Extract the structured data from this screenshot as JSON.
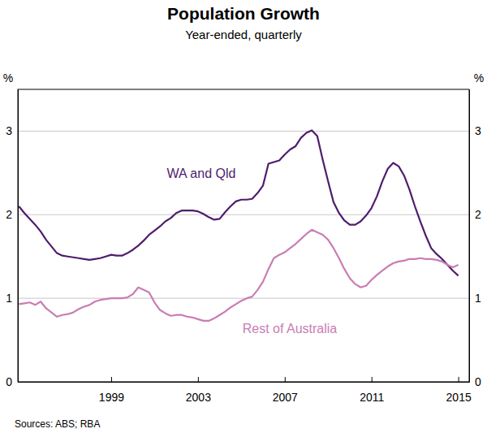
{
  "chart_data": {
    "type": "line",
    "title": "Population Growth",
    "subtitle": "Year-ended, quarterly",
    "ylabel": "%",
    "source": "Sources: ABS; RBA",
    "grid": true,
    "xlim": [
      1994.7,
      2015.5
    ],
    "xticks": [
      1999,
      2003,
      2007,
      2011,
      2015
    ],
    "ylim": [
      0,
      3.5
    ],
    "yticks": [
      0,
      1,
      2,
      3
    ],
    "x": [
      1994.75,
      1995,
      1995.25,
      1995.5,
      1995.75,
      1996,
      1996.25,
      1996.5,
      1996.75,
      1997,
      1997.25,
      1997.5,
      1997.75,
      1998,
      1998.25,
      1998.5,
      1998.75,
      1999,
      1999.25,
      1999.5,
      1999.75,
      2000,
      2000.25,
      2000.5,
      2000.75,
      2001,
      2001.25,
      2001.5,
      2001.75,
      2002,
      2002.25,
      2002.5,
      2002.75,
      2003,
      2003.25,
      2003.5,
      2003.75,
      2004,
      2004.25,
      2004.5,
      2004.75,
      2005,
      2005.25,
      2005.5,
      2005.75,
      2006,
      2006.25,
      2006.5,
      2006.75,
      2007,
      2007.25,
      2007.5,
      2007.75,
      2008,
      2008.25,
      2008.5,
      2008.75,
      2009,
      2009.25,
      2009.5,
      2009.75,
      2010,
      2010.25,
      2010.5,
      2010.75,
      2011,
      2011.25,
      2011.5,
      2011.75,
      2012,
      2012.25,
      2012.5,
      2012.75,
      2013,
      2013.25,
      2013.5,
      2013.75,
      2014,
      2014.25,
      2014.5,
      2014.75,
      2015
    ],
    "series": [
      {
        "name": "WA and Qld",
        "color": "#4e1d6e",
        "values": [
          2.1,
          2.02,
          1.95,
          1.88,
          1.8,
          1.7,
          1.62,
          1.54,
          1.51,
          1.5,
          1.49,
          1.48,
          1.47,
          1.46,
          1.47,
          1.48,
          1.5,
          1.52,
          1.51,
          1.51,
          1.54,
          1.58,
          1.63,
          1.69,
          1.76,
          1.81,
          1.86,
          1.92,
          1.96,
          2.02,
          2.05,
          2.05,
          2.05,
          2.04,
          2.01,
          1.97,
          1.94,
          1.95,
          2.03,
          2.1,
          2.16,
          2.18,
          2.18,
          2.19,
          2.26,
          2.35,
          2.61,
          2.63,
          2.65,
          2.72,
          2.78,
          2.82,
          2.92,
          2.98,
          3.01,
          2.94,
          2.66,
          2.4,
          2.15,
          2.02,
          1.93,
          1.88,
          1.88,
          1.92,
          1.99,
          2.08,
          2.22,
          2.4,
          2.55,
          2.62,
          2.58,
          2.47,
          2.3,
          2.1,
          1.92,
          1.75,
          1.6,
          1.53,
          1.47,
          1.4,
          1.33,
          1.27
        ]
      },
      {
        "name": "Rest of Australia",
        "color": "#c97db3",
        "values": [
          0.93,
          0.94,
          0.95,
          0.92,
          0.96,
          0.88,
          0.83,
          0.78,
          0.8,
          0.81,
          0.83,
          0.87,
          0.9,
          0.92,
          0.96,
          0.98,
          0.99,
          1.0,
          1.0,
          1.0,
          1.01,
          1.05,
          1.13,
          1.1,
          1.07,
          0.95,
          0.86,
          0.82,
          0.79,
          0.8,
          0.8,
          0.78,
          0.77,
          0.75,
          0.73,
          0.73,
          0.76,
          0.8,
          0.84,
          0.89,
          0.93,
          0.97,
          1.0,
          1.02,
          1.1,
          1.2,
          1.35,
          1.48,
          1.52,
          1.55,
          1.6,
          1.65,
          1.71,
          1.77,
          1.82,
          1.79,
          1.76,
          1.7,
          1.6,
          1.48,
          1.35,
          1.24,
          1.17,
          1.13,
          1.15,
          1.22,
          1.28,
          1.33,
          1.38,
          1.42,
          1.44,
          1.45,
          1.47,
          1.47,
          1.48,
          1.47,
          1.47,
          1.46,
          1.44,
          1.4,
          1.37,
          1.4
        ]
      }
    ]
  }
}
